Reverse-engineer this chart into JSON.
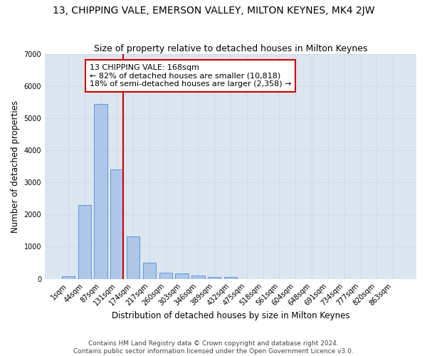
{
  "title": "13, CHIPPING VALE, EMERSON VALLEY, MILTON KEYNES, MK4 2JW",
  "subtitle": "Size of property relative to detached houses in Milton Keynes",
  "xlabel": "Distribution of detached houses by size in Milton Keynes",
  "ylabel": "Number of detached properties",
  "footer_line1": "Contains HM Land Registry data © Crown copyright and database right 2024.",
  "footer_line2": "Contains public sector information licensed under the Open Government Licence v3.0.",
  "bar_labels": [
    "1sqm",
    "44sqm",
    "87sqm",
    "131sqm",
    "174sqm",
    "217sqm",
    "260sqm",
    "303sqm",
    "346sqm",
    "389sqm",
    "432sqm",
    "475sqm",
    "518sqm",
    "561sqm",
    "604sqm",
    "648sqm",
    "691sqm",
    "734sqm",
    "777sqm",
    "820sqm",
    "863sqm"
  ],
  "bar_values": [
    75,
    2300,
    5450,
    3400,
    1310,
    490,
    195,
    175,
    95,
    60,
    55,
    0,
    0,
    0,
    0,
    0,
    0,
    0,
    0,
    0,
    0
  ],
  "bar_color": "#aec6e8",
  "bar_edge_color": "#5b9bd5",
  "grid_color": "#d0d8e8",
  "background_color": "#dce6f1",
  "annotation_line1": "13 CHIPPING VALE: 168sqm",
  "annotation_line2": "← 82% of detached houses are smaller (10,818)",
  "annotation_line3": "18% of semi-detached houses are larger (2,358) →",
  "vline_color": "#cc0000",
  "annotation_box_color": "#cc0000",
  "ylim": [
    0,
    7000
  ],
  "yticks": [
    0,
    1000,
    2000,
    3000,
    4000,
    5000,
    6000,
    7000
  ],
  "title_fontsize": 10,
  "subtitle_fontsize": 9,
  "axis_label_fontsize": 8.5,
  "tick_fontsize": 7,
  "annotation_fontsize": 8,
  "footer_fontsize": 6.5
}
